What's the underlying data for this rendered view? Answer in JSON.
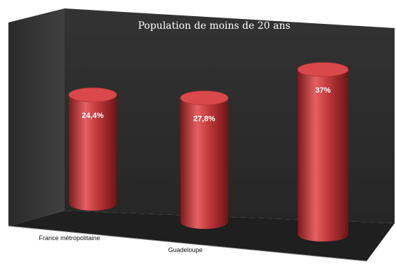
{
  "chart_data": {
    "type": "bar",
    "title": "Population de moins de 20 ans",
    "categories": [
      "France métropolitaine",
      "Guadeloupe",
      ""
    ],
    "values": [
      24.4,
      27.8,
      37
    ],
    "value_labels": [
      "24,4%",
      "27,8%",
      "37%"
    ],
    "unit": "%",
    "ylim": [
      0,
      40
    ],
    "grid": false,
    "legend": "none",
    "style": "3d-cylinder",
    "colors": {
      "bar": "#c0393b",
      "bar_dark": "#7a1a1c",
      "bar_light": "#e46062",
      "bar_top": "#d9494b",
      "wall_back": "#2c2c2c",
      "wall_side": "#3a3a3a",
      "floor": "#202020"
    }
  }
}
